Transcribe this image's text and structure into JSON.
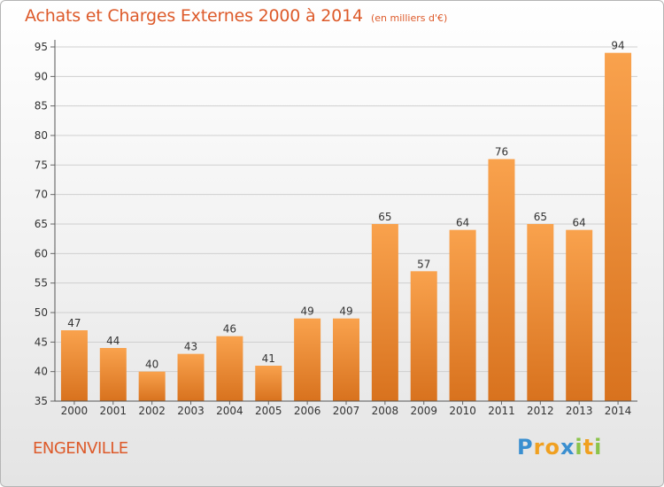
{
  "title": "Achats et Charges Externes 2000 à 2014",
  "subtitle": "(en milliers d'€)",
  "location": "ENGENVILLE",
  "logo": {
    "text": "Proxiti",
    "letters": [
      {
        "ch": "P",
        "color": "#3a8fd0"
      },
      {
        "ch": "r",
        "color": "#f0a020"
      },
      {
        "ch": "o",
        "color": "#f0a020"
      },
      {
        "ch": "x",
        "color": "#3a8fd0"
      },
      {
        "ch": "i",
        "color": "#8bc34a"
      },
      {
        "ch": "t",
        "color": "#f0a020"
      },
      {
        "ch": "i",
        "color": "#8bc34a"
      }
    ]
  },
  "colors": {
    "bar_top": "#f9a24d",
    "bar_bottom": "#d8721e",
    "title": "#dd5a2a",
    "axis_text": "#333333",
    "grid": "#cfcfcf"
  },
  "chart_data": {
    "type": "bar",
    "title": "Achats et Charges Externes 2000 à 2014",
    "subtitle": "(en milliers d'€)",
    "categories": [
      "2000",
      "2001",
      "2002",
      "2003",
      "2004",
      "2005",
      "2006",
      "2007",
      "2008",
      "2009",
      "2010",
      "2011",
      "2012",
      "2013",
      "2014"
    ],
    "values": [
      47,
      44,
      40,
      43,
      46,
      41,
      49,
      49,
      65,
      57,
      64,
      76,
      65,
      64,
      94
    ],
    "ylim": [
      35,
      95
    ],
    "yticks": [
      35,
      40,
      45,
      50,
      55,
      60,
      65,
      70,
      75,
      80,
      85,
      90,
      95
    ],
    "grid": true,
    "data_labels": true
  }
}
